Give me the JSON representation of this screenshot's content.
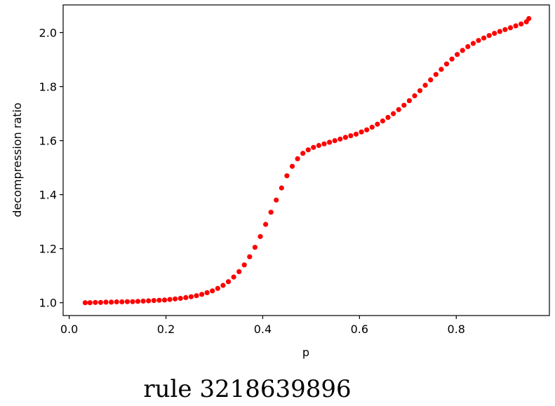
{
  "caption": "rule 3218639896",
  "chart_data": {
    "type": "scatter",
    "xlabel": "p",
    "ylabel": "decompression ratio",
    "xlim": [
      -0.0125,
      0.9925
    ],
    "ylim": [
      0.9525,
      2.1025
    ],
    "xticks": [
      0.0,
      0.2,
      0.4,
      0.6,
      0.8
    ],
    "xtick_labels": [
      "0.0",
      "0.2",
      "0.4",
      "0.6",
      "0.8"
    ],
    "yticks": [
      1.0,
      1.2,
      1.4,
      1.6,
      1.8,
      2.0
    ],
    "ytick_labels": [
      "1.0",
      "1.2",
      "1.4",
      "1.6",
      "1.8",
      "2.0"
    ],
    "grid": false,
    "marker_color": "#ff0000",
    "x": [
      0.033,
      0.043,
      0.054,
      0.065,
      0.076,
      0.087,
      0.098,
      0.109,
      0.12,
      0.131,
      0.142,
      0.153,
      0.164,
      0.175,
      0.186,
      0.197,
      0.208,
      0.219,
      0.23,
      0.241,
      0.252,
      0.263,
      0.274,
      0.285,
      0.296,
      0.307,
      0.318,
      0.329,
      0.34,
      0.351,
      0.362,
      0.373,
      0.384,
      0.395,
      0.406,
      0.417,
      0.428,
      0.439,
      0.45,
      0.461,
      0.472,
      0.483,
      0.494,
      0.505,
      0.516,
      0.527,
      0.538,
      0.549,
      0.56,
      0.571,
      0.582,
      0.593,
      0.604,
      0.615,
      0.626,
      0.637,
      0.648,
      0.659,
      0.67,
      0.681,
      0.692,
      0.703,
      0.714,
      0.725,
      0.736,
      0.747,
      0.758,
      0.769,
      0.78,
      0.791,
      0.802,
      0.813,
      0.824,
      0.835,
      0.846,
      0.857,
      0.868,
      0.879,
      0.89,
      0.901,
      0.912,
      0.923,
      0.934,
      0.945,
      0.95
    ],
    "y": [
      1.0,
      1.0,
      1.001,
      1.001,
      1.002,
      1.002,
      1.003,
      1.003,
      1.004,
      1.004,
      1.005,
      1.006,
      1.007,
      1.008,
      1.009,
      1.01,
      1.012,
      1.014,
      1.016,
      1.019,
      1.022,
      1.026,
      1.031,
      1.037,
      1.044,
      1.053,
      1.064,
      1.078,
      1.095,
      1.115,
      1.14,
      1.17,
      1.205,
      1.245,
      1.29,
      1.335,
      1.38,
      1.425,
      1.47,
      1.505,
      1.533,
      1.553,
      1.566,
      1.575,
      1.582,
      1.588,
      1.594,
      1.6,
      1.606,
      1.612,
      1.618,
      1.624,
      1.632,
      1.64,
      1.65,
      1.661,
      1.673,
      1.686,
      1.7,
      1.715,
      1.731,
      1.748,
      1.766,
      1.785,
      1.805,
      1.825,
      1.845,
      1.864,
      1.884,
      1.902,
      1.919,
      1.934,
      1.948,
      1.96,
      1.971,
      1.98,
      1.989,
      1.997,
      2.004,
      2.011,
      2.018,
      2.025,
      2.032,
      2.04,
      2.052
    ]
  }
}
